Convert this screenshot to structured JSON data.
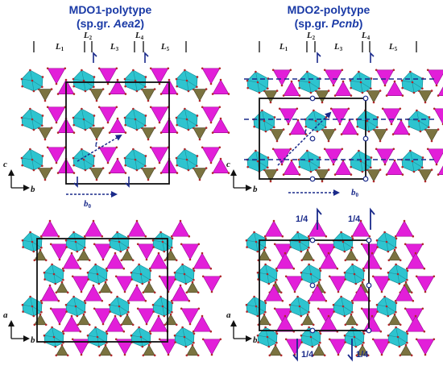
{
  "colors": {
    "octahedron": "#2ec4cf",
    "octahedron_dark": "#1a8f9a",
    "tetra_magenta": "#e21fd9",
    "tetra_magenta_dark": "#a10f9a",
    "tetra_olive": "#7b7340",
    "tetra_olive_dark": "#4e4a28",
    "atom": "#b0282a",
    "annotation_blue": "#1a2a8a",
    "title_blue": "#1a3aa6"
  },
  "icons": [
    "axis-arrow-icon",
    "screw-axis-icon",
    "inversion-center-icon"
  ],
  "panels": {
    "mdo1": {
      "title_line1": "MDO1-polytype",
      "title_line2_prefix": "(sp.gr. ",
      "title_line2_group": "Aea",
      "title_line2_suffix": "2)",
      "layers": [
        "L1",
        "L2",
        "L3",
        "L4",
        "L5"
      ],
      "top_axes": {
        "vertical": "c",
        "horizontal": "b"
      },
      "bottom_axes": {
        "vertical": "a",
        "horizontal": "b"
      },
      "translation_label": "b0",
      "translation_mark": "t"
    },
    "mdo2": {
      "title_line1": "MDO2-polytype",
      "title_line2_prefix": "(sp.gr. ",
      "title_line2_group": "Pcnb",
      "title_line2_suffix": ")",
      "layers": [
        "L1",
        "L2",
        "L3",
        "L4",
        "L5"
      ],
      "top_axes": {
        "vertical": "c",
        "horizontal": "b"
      },
      "bottom_axes": {
        "vertical": "a",
        "horizontal": "b"
      },
      "translation_label": "b0",
      "screw_labels": [
        "1/4",
        "1/4",
        "1/4",
        "1/4"
      ],
      "translation_mark": "t"
    }
  }
}
